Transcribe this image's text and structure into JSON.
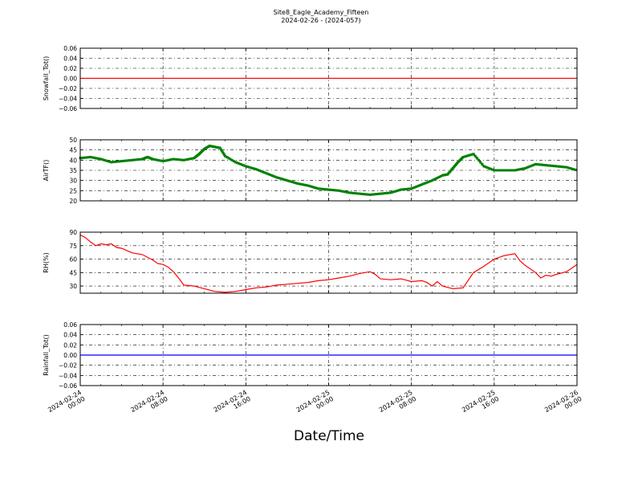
{
  "figure": {
    "title": "Site8_Eagle_Academy_Fifteen",
    "subtitle": "2024-02-26 - (2024-057)",
    "xlabel": "Date/Time"
  },
  "chart_data": [
    {
      "type": "line",
      "ylabel": "Snowfall_Tot()",
      "ylim": [
        -0.06,
        0.06
      ],
      "yticks": [
        "0.06",
        "0.04",
        "0.02",
        "0.00",
        "−0.02",
        "−0.04",
        "−0.06"
      ],
      "ytick_values": [
        0.06,
        0.04,
        0.02,
        0.0,
        -0.02,
        -0.04,
        -0.06
      ],
      "grid": true,
      "color": "#ff0000",
      "x_hours": [
        0,
        48
      ],
      "series": [
        {
          "x": [
            0,
            48
          ],
          "y": [
            0,
            0
          ]
        }
      ]
    },
    {
      "type": "line",
      "ylabel": "AirTF()",
      "ylim": [
        20,
        50
      ],
      "yticks": [
        "50",
        "45",
        "40",
        "35",
        "30",
        "25",
        "20"
      ],
      "ytick_values": [
        50,
        45,
        40,
        35,
        30,
        25,
        20
      ],
      "grid": true,
      "color": "#008000",
      "markers": true,
      "series": [
        {
          "x": [
            0,
            1,
            2,
            3,
            4,
            5,
            6,
            6.5,
            7,
            8,
            9,
            10,
            11,
            11.5,
            12,
            12.5,
            13,
            13.5,
            14,
            15,
            16,
            17,
            18,
            19,
            20,
            21,
            22,
            23,
            24,
            25,
            26,
            27,
            28,
            29,
            30,
            31,
            32,
            33,
            34,
            35,
            35.5,
            36,
            36.5,
            37,
            38,
            39,
            40,
            41,
            42,
            43,
            44,
            45,
            46,
            47,
            48
          ],
          "y": [
            41,
            41.5,
            40.5,
            39,
            39.5,
            40,
            40.5,
            41.5,
            40.5,
            39.5,
            40.5,
            40,
            41,
            43,
            45.5,
            47,
            46.5,
            46,
            42,
            39,
            37,
            35.5,
            33.5,
            31.5,
            30,
            28.5,
            27.5,
            26,
            25.5,
            25,
            24,
            23.5,
            23,
            23.5,
            24,
            25.5,
            26,
            28,
            30,
            32.5,
            33,
            36,
            39,
            41.5,
            43,
            37,
            35,
            35,
            35,
            36,
            38,
            37.5,
            37,
            36.5,
            35
          ]
        }
      ]
    },
    {
      "type": "line",
      "ylabel": "RH(%)",
      "ylim": [
        22,
        90
      ],
      "yticks": [
        "90",
        "75",
        "60",
        "45",
        "30"
      ],
      "ytick_values": [
        90,
        75,
        60,
        45,
        30
      ],
      "grid": true,
      "color": "#ff0000",
      "series": [
        {
          "x": [
            0,
            0.5,
            1,
            1.5,
            2,
            2.5,
            3,
            3.5,
            4,
            5,
            6,
            7,
            7.5,
            8,
            8.5,
            9,
            9.5,
            10,
            11,
            12,
            13,
            14,
            15,
            16,
            17,
            18,
            19,
            20,
            21,
            22,
            23,
            24,
            25,
            26,
            27,
            28,
            28.5,
            29,
            30,
            31,
            32,
            33,
            33.5,
            34,
            34.5,
            35,
            36,
            37,
            38,
            39,
            40,
            41,
            42,
            42.5,
            43,
            44,
            44.5,
            45,
            45.5,
            46,
            47,
            48
          ],
          "y": [
            87,
            84,
            79,
            75,
            77,
            76,
            77,
            73,
            72,
            67,
            65,
            59,
            55,
            54,
            51,
            46,
            39,
            31,
            30,
            27,
            24,
            23,
            24,
            26,
            28,
            29,
            31,
            32,
            33,
            34,
            36,
            37,
            39,
            41,
            44,
            46,
            43,
            38,
            37,
            38,
            35,
            36,
            34,
            30,
            35,
            30,
            27,
            28,
            45,
            52,
            60,
            64,
            66,
            58,
            53,
            45,
            39,
            42,
            41,
            43,
            46,
            54
          ]
        }
      ]
    },
    {
      "type": "line",
      "ylabel": "Rainfall_Tot()",
      "ylim": [
        -0.06,
        0.06
      ],
      "yticks": [
        "0.06",
        "0.04",
        "0.02",
        "0.00",
        "−0.02",
        "−0.04",
        "−0.06"
      ],
      "ytick_values": [
        0.06,
        0.04,
        0.02,
        0.0,
        -0.02,
        -0.04,
        -0.06
      ],
      "grid": true,
      "color": "#0000ff",
      "series": [
        {
          "x": [
            0,
            48
          ],
          "y": [
            0,
            0
          ]
        }
      ]
    }
  ],
  "xaxis": {
    "ticks": [
      {
        "hour": 0,
        "line1": "2024-02-24",
        "line2": "00:00"
      },
      {
        "hour": 8,
        "line1": "2024-02-24",
        "line2": "08:00"
      },
      {
        "hour": 16,
        "line1": "2024-02-24",
        "line2": "16:00"
      },
      {
        "hour": 24,
        "line1": "2024-02-25",
        "line2": "00:00"
      },
      {
        "hour": 32,
        "line1": "2024-02-25",
        "line2": "08:00"
      },
      {
        "hour": 40,
        "line1": "2024-02-25",
        "line2": "16:00"
      },
      {
        "hour": 48,
        "line1": "2024-02-26",
        "line2": "00:00"
      }
    ]
  }
}
